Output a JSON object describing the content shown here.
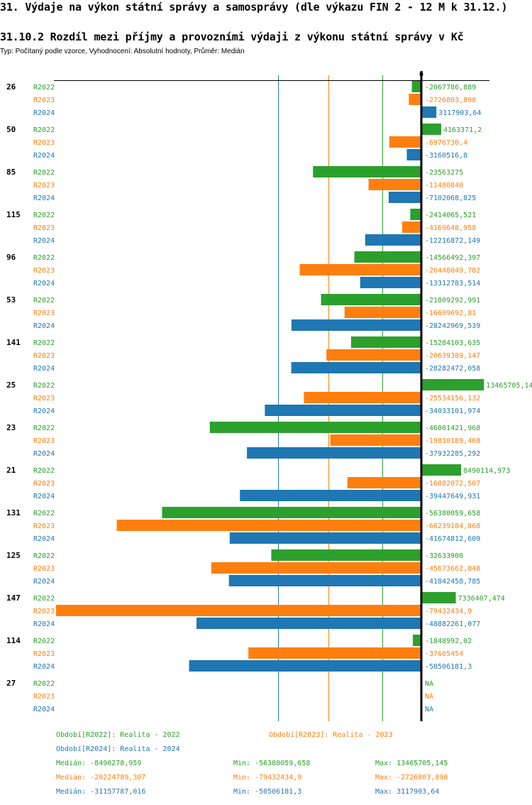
{
  "header": {
    "title": "31. Výdaje na výkon státní správy a samosprávy (dle výkazu FIN 2 - 12 M k 31.12.)",
    "subtitle": "31.10.2 Rozdíl mezi příjmy a provozními výdaji z výkonu státní správy v Kč",
    "type_line": "Typ: Počítaný podle vzorce, Vyhodnocení: Absolutní hodnoty, Průměr: Medián"
  },
  "colors": {
    "R2022": "#2ca02c",
    "R2023": "#ff7f0e",
    "R2024": "#1f77b4",
    "axis": "#000000"
  },
  "chart_data": {
    "type": "bar",
    "orientation": "horizontal",
    "title": "31.10.2 Rozdíl mezi příjmy a provozními výdaji z výkonu státní správy v Kč",
    "zero_label": "0",
    "series_names": [
      "R2022",
      "R2023",
      "R2024"
    ],
    "groups": [
      {
        "id": "26",
        "values": [
          -2067786.889,
          -2726803.898,
          3117903.64
        ],
        "labels": [
          "-2067786,889",
          "-2726803,898",
          "3117903,64"
        ]
      },
      {
        "id": "50",
        "values": [
          4163371.2,
          -6976730.4,
          -3160516.8
        ],
        "labels": [
          "4163371,2",
          "-6976730,4",
          "-3160516,8"
        ]
      },
      {
        "id": "85",
        "values": [
          -23563275,
          -11480840,
          -7102068.825
        ],
        "labels": [
          "-23563275",
          "-11480840",
          "-7102068,825"
        ]
      },
      {
        "id": "115",
        "values": [
          -2414065.521,
          -4169648.958,
          -12216872.149
        ],
        "labels": [
          "-2414065,521",
          "-4169648,958",
          "-12216872,149"
        ]
      },
      {
        "id": "96",
        "values": [
          -14566492.397,
          -26448049.782,
          -13312783.514
        ],
        "labels": [
          "-14566492,397",
          "-26448049,782",
          "-13312783,514"
        ]
      },
      {
        "id": "53",
        "values": [
          -21809292.991,
          -16699692.81,
          -28242969.539
        ],
        "labels": [
          "-21809292,991",
          "-16699692,81",
          "-28242969,539"
        ]
      },
      {
        "id": "141",
        "values": [
          -15284103.635,
          -20639389.147,
          -28282472.058
        ],
        "labels": [
          "-15284103,635",
          "-20639389,147",
          "-28282472,058"
        ]
      },
      {
        "id": "25",
        "values": [
          13465705.145,
          -25534156.132,
          -34033101.974
        ],
        "labels": [
          "13465705,14",
          "-25534156,132",
          "-34033101,974"
        ]
      },
      {
        "id": "23",
        "values": [
          -46001421.968,
          -19810189.468,
          -37932285.292
        ],
        "labels": [
          "-46001421,968",
          "-19810189,468",
          "-37932285,292"
        ]
      },
      {
        "id": "21",
        "values": [
          8490114.973,
          -16082072.507,
          -39447649.931
        ],
        "labels": [
          "8490114,973",
          "-16082072,507",
          "-39447649,931"
        ]
      },
      {
        "id": "131",
        "values": [
          -56380059.658,
          -66239184.868,
          -41674812.609
        ],
        "labels": [
          "-56380059,658",
          "-66239184,868",
          "-41674812,609"
        ]
      },
      {
        "id": "125",
        "values": [
          -32633900,
          -45673662.848,
          -41842458.785
        ],
        "labels": [
          "-32633900",
          "-45673662,848",
          "-41842458,785"
        ]
      },
      {
        "id": "147",
        "values": [
          7336407.474,
          -79432434.9,
          -48882261.077
        ],
        "labels": [
          "7336407,474",
          "-79432434,9",
          "-48882261,077"
        ]
      },
      {
        "id": "114",
        "values": [
          -1848992.02,
          -37605454,
          -50506181.3
        ],
        "labels": [
          "-1848992,02",
          "-37605454",
          "-50506181,3"
        ]
      },
      {
        "id": "27",
        "values": [
          null,
          null,
          null
        ],
        "labels": [
          "NA",
          "NA",
          "NA"
        ]
      }
    ],
    "medians": {
      "R2022": -8490278.959,
      "R2023": -20224789.307,
      "R2024": -31157787.016
    },
    "xlim": [
      -79432434.9,
      13465705.145
    ],
    "grid": false,
    "legend_position": "bottom"
  },
  "footer": {
    "legend": [
      {
        "series": "R2022",
        "text": "Období[R2022]: Realita - 2022"
      },
      {
        "series": "R2023",
        "text": "Období[R2023]: Realita - 2023"
      },
      {
        "series": "R2024",
        "text": "Období[R2024]: Realita - 2024"
      }
    ],
    "stats": [
      {
        "series": "R2022",
        "median": "Medián: -8490278,959",
        "min": "Min: -56380059,658",
        "max": "Max: 13465705,145"
      },
      {
        "series": "R2023",
        "median": "Medián: -20224789,307",
        "min": "Min: -79432434,9",
        "max": "Max: -2726803,898"
      },
      {
        "series": "R2024",
        "median": "Medián: -31157787,016",
        "min": "Min: -50506181,3",
        "max": "Max: 3117903,64"
      }
    ]
  }
}
